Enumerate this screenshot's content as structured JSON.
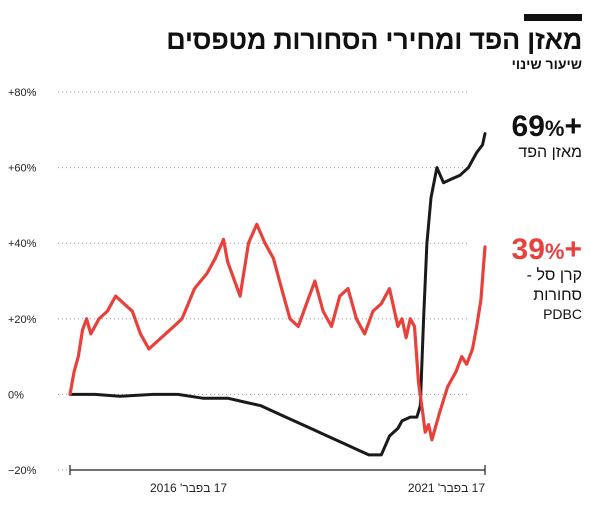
{
  "title": "מאזן הפד ומחירי הסחורות מטפסים",
  "subtitle": "שיעור שינוי",
  "colors": {
    "black_series": "#1a1a1a",
    "red_series": "#e8413c",
    "grid": "#9a9a9a",
    "axis": "#222222"
  },
  "end_labels": {
    "fed": {
      "value": "+69",
      "pct": "%",
      "label": "מאזן הפד"
    },
    "commodities": {
      "value": "+39",
      "pct": "%",
      "label_line1": "קרן סל -",
      "label_line2": "סחורות",
      "label_line3": "PDBC"
    }
  },
  "chart_data": {
    "type": "line",
    "xlabel": "",
    "ylabel": "",
    "ylim": [
      -20,
      80
    ],
    "y_ticks": [
      80,
      60,
      40,
      20,
      0,
      -20
    ],
    "y_tick_labels": [
      "+80%",
      "+60%",
      "+40%",
      "+20%",
      "0%",
      "−20%"
    ],
    "x_ticks": [
      2016.0,
      2021.0
    ],
    "x_tick_labels": [
      "17 בפבר' 2016",
      "17 בפבר' 2021"
    ],
    "xlim": [
      2016.0,
      2021.0
    ],
    "grid": "horizontal-dotted",
    "series": [
      {
        "name": "מאזן הפד",
        "color": "#1a1a1a",
        "x": [
          2016.0,
          2016.3,
          2016.6,
          2017.0,
          2017.3,
          2017.6,
          2017.9,
          2018.1,
          2018.3,
          2018.6,
          2018.9,
          2019.1,
          2019.3,
          2019.5,
          2019.6,
          2019.75,
          2019.85,
          2019.95,
          2020.0,
          2020.1,
          2020.18,
          2020.22,
          2020.26,
          2020.3,
          2020.35,
          2020.42,
          2020.5,
          2020.6,
          2020.7,
          2020.8,
          2020.9,
          2020.97,
          2021.0
        ],
        "values": [
          0,
          0,
          -0.5,
          0,
          0,
          -1,
          -1,
          -2,
          -3,
          -6,
          -9,
          -11,
          -13,
          -15,
          -16,
          -16,
          -11,
          -9,
          -7,
          -6,
          -6,
          -3,
          20,
          40,
          52,
          60,
          56,
          57,
          58,
          60,
          64,
          66,
          69
        ]
      },
      {
        "name": "קרן סל - סחורות PDBC",
        "color": "#e8413c",
        "x": [
          2016.0,
          2016.05,
          2016.1,
          2016.15,
          2016.2,
          2016.25,
          2016.3,
          2016.35,
          2016.45,
          2016.55,
          2016.65,
          2016.75,
          2016.85,
          2016.95,
          2017.05,
          2017.15,
          2017.25,
          2017.35,
          2017.5,
          2017.65,
          2017.75,
          2017.85,
          2017.9,
          2017.95,
          2018.0,
          2018.05,
          2018.15,
          2018.25,
          2018.35,
          2018.45,
          2018.55,
          2018.65,
          2018.75,
          2018.85,
          2018.95,
          2019.05,
          2019.15,
          2019.25,
          2019.35,
          2019.45,
          2019.55,
          2019.65,
          2019.75,
          2019.85,
          2019.95,
          2020.0,
          2020.05,
          2020.1,
          2020.15,
          2020.2,
          2020.25,
          2020.28,
          2020.32,
          2020.36,
          2020.45,
          2020.55,
          2020.65,
          2020.72,
          2020.78,
          2020.85,
          2020.9,
          2020.95,
          2021.0
        ],
        "values": [
          0,
          6,
          10,
          17,
          20,
          16,
          18,
          20,
          22,
          26,
          24,
          22,
          16,
          12,
          14,
          16,
          18,
          20,
          28,
          32,
          36,
          41,
          35,
          32,
          29,
          26,
          40,
          45,
          40,
          36,
          28,
          20,
          18,
          24,
          30,
          22,
          18,
          26,
          28,
          20,
          16,
          22,
          24,
          28,
          18,
          20,
          15,
          20,
          18,
          3,
          -5,
          -10,
          -8,
          -12,
          -5,
          2,
          6,
          10,
          8,
          12,
          18,
          25,
          39
        ]
      }
    ]
  }
}
